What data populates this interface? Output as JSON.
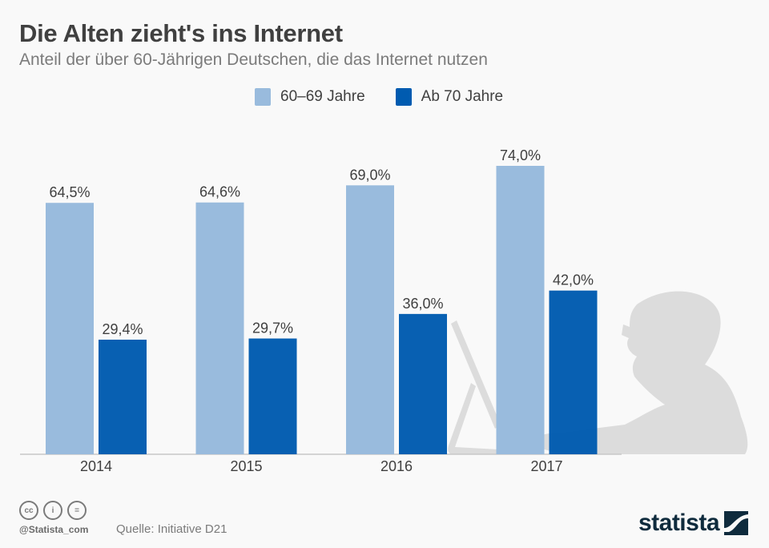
{
  "header": {
    "title": "Die Alten zieht's ins Internet",
    "subtitle": "Anteil der über 60-Jährigen Deutschen, die das Internet nutzen"
  },
  "legend": [
    {
      "label": "60–69 Jahre",
      "color": "#99bbdd"
    },
    {
      "label": "Ab 70 Jahre",
      "color": "#005bb0"
    }
  ],
  "footer": {
    "handle": "@Statista_com",
    "source": "Quelle: Initiative D21",
    "brand": "statista",
    "license_icons": [
      "cc-icon",
      "by-attribution-icon",
      "no-derivatives-icon"
    ],
    "license_glyphs": [
      "cc",
      "i",
      "="
    ]
  },
  "chart_data": {
    "type": "bar",
    "title": "Die Alten zieht's ins Internet",
    "subtitle": "Anteil der über 60-Jährigen Deutschen, die das Internet nutzen",
    "xlabel": "",
    "ylabel": "",
    "categories": [
      "2014",
      "2015",
      "2016",
      "2017"
    ],
    "series": [
      {
        "name": "60–69 Jahre",
        "color": "#99bbdd",
        "values": [
          64.5,
          64.6,
          69.0,
          74.0
        ],
        "labels": [
          "64,5%",
          "64,6%",
          "69,0%",
          "74,0%"
        ]
      },
      {
        "name": "Ab 70 Jahre",
        "color": "#005bb0",
        "values": [
          29.4,
          29.7,
          36.0,
          42.0
        ],
        "labels": [
          "29,4%",
          "29,7%",
          "36,0%",
          "42,0%"
        ]
      }
    ],
    "ylim": [
      0,
      80
    ],
    "grid": false,
    "legend_position": "top-center"
  }
}
